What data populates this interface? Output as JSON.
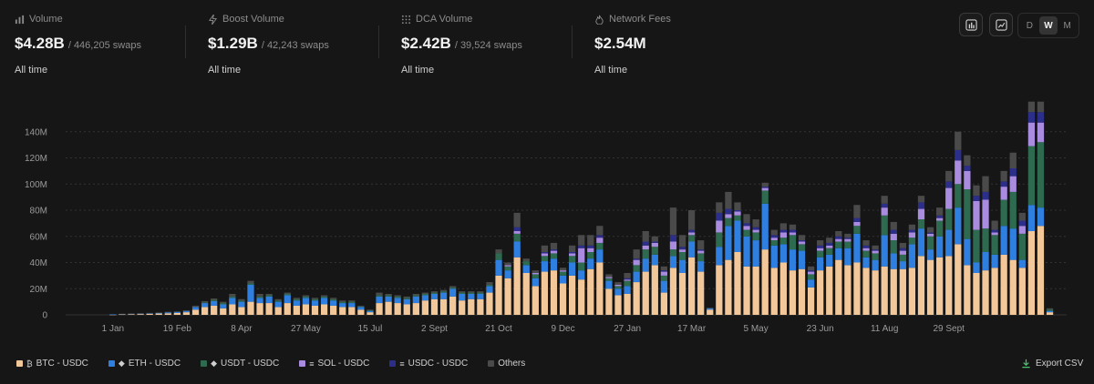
{
  "stats": [
    {
      "label": "Volume",
      "icon": "bar-chart-icon",
      "value": "$4.28B",
      "sub": "/ 446,205 swaps",
      "period": "All time"
    },
    {
      "label": "Boost Volume",
      "icon": "bolt-icon",
      "value": "$1.29B",
      "sub": "/ 42,243 swaps",
      "period": "All time"
    },
    {
      "label": "DCA Volume",
      "icon": "dot-grid-icon",
      "value": "$2.42B",
      "sub": "/ 39,524 swaps",
      "period": "All time"
    },
    {
      "label": "Network Fees",
      "icon": "flame-icon",
      "value": "$2.54M",
      "sub": "",
      "period": "All time"
    }
  ],
  "controls": {
    "ranges": [
      "D",
      "W",
      "M"
    ],
    "active_range": "W"
  },
  "legend": [
    {
      "label": "BTC - USDC",
      "color": "#f2c79a",
      "token_icon": "bitcoin-icon"
    },
    {
      "label": "ETH - USDC",
      "color": "#2f7fe0",
      "token_icon": "ethereum-icon"
    },
    {
      "label": "USDT - USDC",
      "color": "#2d6a4f",
      "token_icon": "ethereum-icon"
    },
    {
      "label": "SOL - USDC",
      "color": "#a98be0",
      "token_icon": "solana-icon"
    },
    {
      "label": "USDC - USDC",
      "color": "#2c2f8a",
      "token_icon": "solana-icon"
    },
    {
      "label": "Others",
      "color": "#4a4a4a",
      "token_icon": ""
    }
  ],
  "export_label": "Export CSV",
  "chart_data": {
    "type": "bar",
    "stacked": true,
    "ylim": [
      0,
      160
    ],
    "yticks": [
      0,
      20,
      40,
      60,
      80,
      100,
      120,
      140
    ],
    "ytick_labels": [
      "0",
      "20M",
      "40M",
      "60M",
      "80M",
      "100M",
      "120M",
      "140M"
    ],
    "xtick_labels": [
      {
        "index": 3,
        "label": "1 Jan"
      },
      {
        "index": 10,
        "label": "19 Feb"
      },
      {
        "index": 17,
        "label": "8 Apr"
      },
      {
        "index": 24,
        "label": "27 May"
      },
      {
        "index": 31,
        "label": "15 Jul"
      },
      {
        "index": 38,
        "label": "2 Sept"
      },
      {
        "index": 45,
        "label": "21 Oct"
      },
      {
        "index": 52,
        "label": "9 Dec"
      },
      {
        "index": 59,
        "label": "27 Jan"
      },
      {
        "index": 66,
        "label": "17 Mar"
      },
      {
        "index": 73,
        "label": "5 May"
      },
      {
        "index": 80,
        "label": "23 Jun"
      },
      {
        "index": 87,
        "label": "11 Aug"
      },
      {
        "index": 94,
        "label": "29 Sept"
      }
    ],
    "series_names": [
      "BTC - USDC",
      "ETH - USDC",
      "USDT - USDC",
      "SOL - USDC",
      "USDC - USDC",
      "Others"
    ],
    "bars": [
      [
        0,
        0,
        0,
        0,
        0,
        0
      ],
      [
        0,
        0,
        0,
        0,
        0,
        0
      ],
      [
        0,
        0,
        0,
        0,
        0,
        0
      ],
      [
        0.2,
        0.2,
        0,
        0,
        0,
        0
      ],
      [
        0.4,
        0.3,
        0,
        0,
        0,
        0.1
      ],
      [
        0.5,
        0.4,
        0,
        0,
        0,
        0.1
      ],
      [
        0.6,
        0.5,
        0,
        0,
        0,
        0.1
      ],
      [
        0.8,
        0.5,
        0,
        0,
        0,
        0.2
      ],
      [
        1,
        0.6,
        0,
        0,
        0,
        0.2
      ],
      [
        1.2,
        0.8,
        0,
        0,
        0,
        0.3
      ],
      [
        1.4,
        0.9,
        0,
        0,
        0,
        0.3
      ],
      [
        2,
        1,
        0,
        0,
        0,
        0.5
      ],
      [
        4,
        2,
        0,
        0,
        0,
        1
      ],
      [
        6,
        3,
        0.5,
        0,
        0,
        1
      ],
      [
        7,
        3.5,
        1,
        0,
        0,
        1
      ],
      [
        5,
        3,
        1,
        0,
        0,
        1
      ],
      [
        8,
        5,
        1,
        0,
        0,
        2
      ],
      [
        6,
        4,
        1,
        0,
        0,
        1
      ],
      [
        10,
        13,
        1,
        0,
        0,
        2
      ],
      [
        9,
        4,
        1,
        0,
        0,
        2
      ],
      [
        9,
        5,
        1,
        0,
        0,
        1
      ],
      [
        6,
        4,
        1,
        0,
        0,
        1
      ],
      [
        9,
        6,
        1,
        0,
        0,
        1
      ],
      [
        7,
        4,
        1,
        0,
        0,
        1
      ],
      [
        8,
        5,
        1,
        0,
        0,
        1
      ],
      [
        7,
        4,
        1,
        0,
        0,
        1
      ],
      [
        8,
        5,
        1,
        0,
        0,
        1
      ],
      [
        7,
        4,
        1,
        0,
        0,
        1
      ],
      [
        6,
        3,
        1,
        0,
        0,
        1
      ],
      [
        6,
        3,
        1,
        0,
        0,
        1
      ],
      [
        4,
        2,
        0.5,
        0,
        0,
        0.5
      ],
      [
        2,
        1,
        0.5,
        0,
        0,
        0.5
      ],
      [
        9,
        5,
        1,
        0,
        0,
        2
      ],
      [
        10,
        4,
        1,
        0,
        0,
        1
      ],
      [
        9,
        4,
        1,
        0,
        0,
        1
      ],
      [
        8,
        4,
        1,
        0,
        0,
        1
      ],
      [
        9,
        5,
        1,
        0,
        0,
        1
      ],
      [
        11,
        4,
        1,
        0,
        0,
        1
      ],
      [
        12,
        4,
        1,
        0,
        0,
        1
      ],
      [
        12,
        5,
        1,
        0,
        0,
        1
      ],
      [
        14,
        6,
        1,
        0,
        0,
        1
      ],
      [
        11,
        5,
        1,
        0,
        0,
        1
      ],
      [
        12,
        4,
        1,
        0,
        0,
        1
      ],
      [
        12,
        4,
        1,
        0,
        0,
        1
      ],
      [
        17,
        5,
        1,
        0,
        0,
        2
      ],
      [
        30,
        12,
        5,
        0,
        0,
        3
      ],
      [
        28,
        6,
        3,
        1,
        0,
        2
      ],
      [
        44,
        12,
        6,
        2,
        3,
        11
      ],
      [
        32,
        6,
        3,
        0,
        0,
        2
      ],
      [
        22,
        6,
        3,
        1,
        0,
        2
      ],
      [
        33,
        8,
        4,
        2,
        1,
        5
      ],
      [
        34,
        9,
        4,
        2,
        1,
        5
      ],
      [
        24,
        6,
        3,
        1,
        0,
        2
      ],
      [
        30,
        10,
        5,
        2,
        1,
        5
      ],
      [
        27,
        7,
        6,
        11,
        2,
        8
      ],
      [
        35,
        8,
        5,
        3,
        2,
        8
      ],
      [
        40,
        10,
        5,
        4,
        2,
        7
      ],
      [
        20,
        6,
        2,
        1,
        0,
        2
      ],
      [
        15,
        5,
        2,
        1,
        0,
        2
      ],
      [
        16,
        6,
        4,
        1,
        1,
        4
      ],
      [
        25,
        8,
        5,
        4,
        1,
        7
      ],
      [
        33,
        10,
        7,
        3,
        3,
        8
      ],
      [
        38,
        8,
        6,
        3,
        1,
        4
      ],
      [
        17,
        9,
        4,
        3,
        1,
        3
      ],
      [
        36,
        9,
        5,
        6,
        5,
        21
      ],
      [
        32,
        10,
        6,
        2,
        2,
        9
      ],
      [
        44,
        12,
        5,
        2,
        2,
        15
      ],
      [
        33,
        8,
        6,
        2,
        1,
        7
      ],
      [
        4,
        1,
        0,
        0,
        0,
        0.5
      ],
      [
        38,
        14,
        11,
        9,
        6,
        8
      ],
      [
        42,
        26,
        6,
        3,
        4,
        13
      ],
      [
        48,
        24,
        4,
        3,
        1,
        6
      ],
      [
        37,
        23,
        5,
        3,
        2,
        7
      ],
      [
        37,
        20,
        6,
        2,
        2,
        6
      ],
      [
        50,
        35,
        10,
        2,
        1,
        3
      ],
      [
        36,
        17,
        4,
        2,
        2,
        4
      ],
      [
        40,
        14,
        5,
        4,
        2,
        5
      ],
      [
        34,
        16,
        11,
        2,
        2,
        4
      ],
      [
        35,
        14,
        5,
        2,
        1,
        4
      ],
      [
        21,
        6,
        4,
        2,
        1,
        3
      ],
      [
        34,
        10,
        5,
        2,
        2,
        4
      ],
      [
        37,
        9,
        5,
        2,
        2,
        4
      ],
      [
        42,
        9,
        5,
        2,
        2,
        4
      ],
      [
        38,
        13,
        5,
        2,
        1,
        3
      ],
      [
        40,
        22,
        6,
        3,
        3,
        10
      ],
      [
        36,
        8,
        5,
        2,
        2,
        4
      ],
      [
        34,
        8,
        5,
        2,
        1,
        3
      ],
      [
        37,
        24,
        15,
        6,
        3,
        6
      ],
      [
        35,
        12,
        10,
        5,
        3,
        6
      ],
      [
        35,
        6,
        5,
        3,
        2,
        4
      ],
      [
        36,
        18,
        5,
        4,
        2,
        4
      ],
      [
        45,
        21,
        7,
        8,
        5,
        5
      ],
      [
        42,
        8,
        10,
        2,
        1,
        4
      ],
      [
        44,
        16,
        12,
        2,
        2,
        6
      ],
      [
        45,
        20,
        16,
        16,
        5,
        8
      ],
      [
        54,
        28,
        18,
        18,
        8,
        14
      ],
      [
        38,
        20,
        38,
        14,
        4,
        8
      ],
      [
        32,
        8,
        25,
        22,
        4,
        8
      ],
      [
        34,
        14,
        18,
        22,
        6,
        12
      ],
      [
        36,
        10,
        15,
        2,
        2,
        7
      ],
      [
        46,
        22,
        20,
        10,
        4,
        8
      ],
      [
        42,
        24,
        28,
        12,
        6,
        12
      ],
      [
        36,
        6,
        20,
        6,
        4,
        6
      ],
      [
        64,
        20,
        45,
        18,
        8,
        8
      ],
      [
        68,
        14,
        50,
        15,
        8,
        8
      ],
      [
        2,
        1,
        1,
        0,
        0,
        1
      ]
    ]
  }
}
